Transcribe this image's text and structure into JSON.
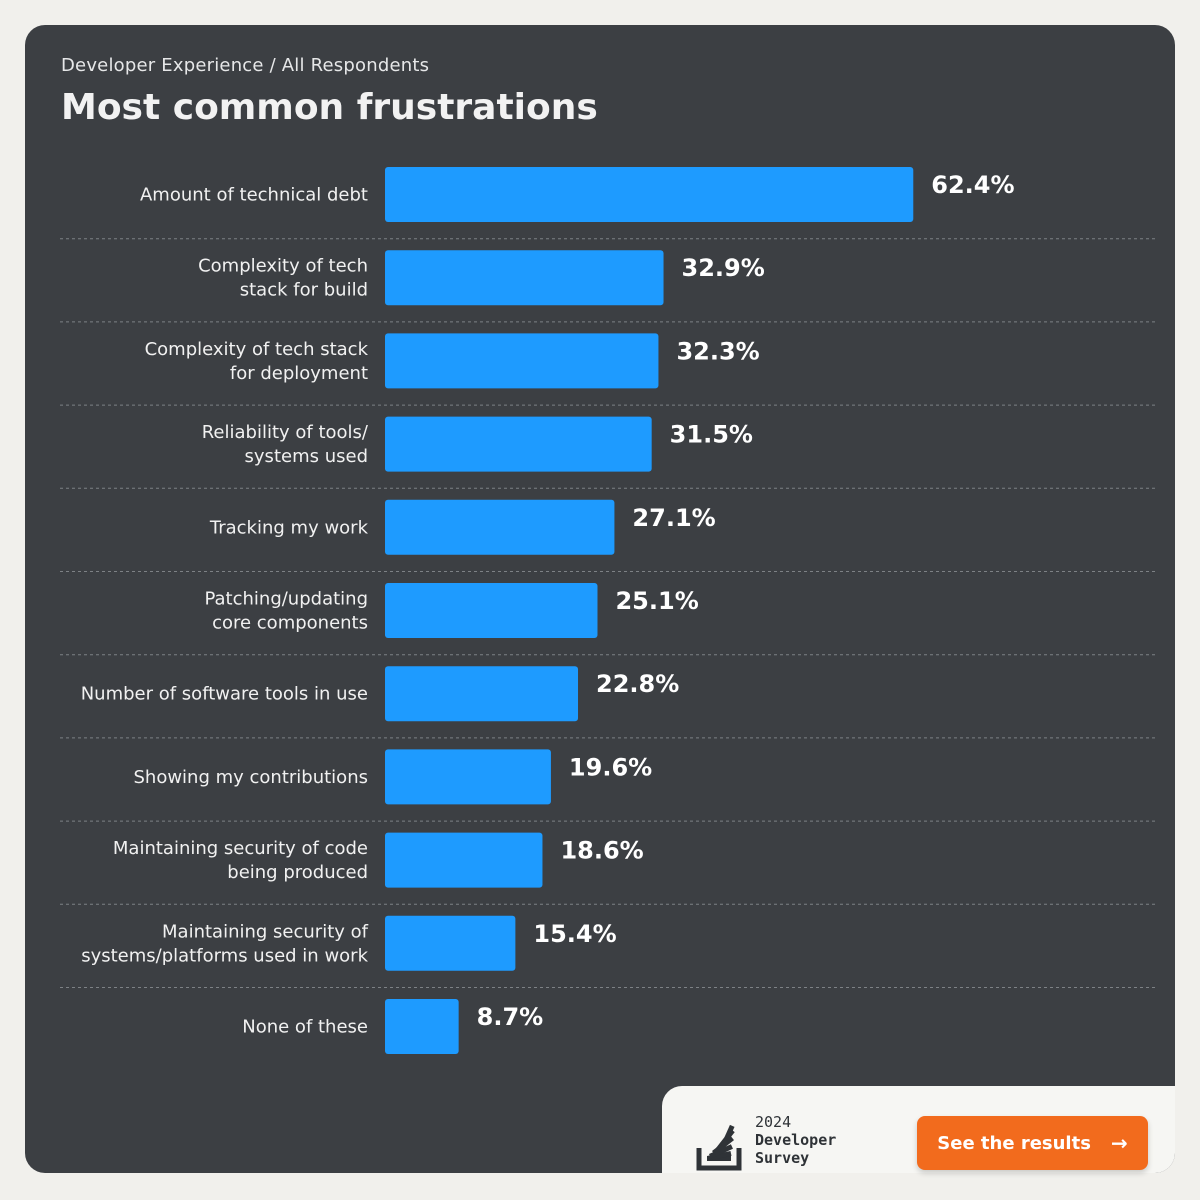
{
  "header": {
    "breadcrumb": "Developer Experience / All Respondents",
    "title": "Most common frustrations"
  },
  "footer": {
    "survey_year": "2024",
    "survey_line1": "Developer",
    "survey_line2": "Survey",
    "cta_label": "See the results",
    "logo_icon": "stack-overflow-logo-icon",
    "arrow_icon": "arrow-right-icon"
  },
  "colors": {
    "bar": "#1e9bff",
    "card_background": "#3c3f43",
    "page_background": "#f1f0ec",
    "cta": "#f26b1d"
  },
  "chart_data": {
    "type": "bar",
    "orientation": "horizontal",
    "categories": [
      [
        "Amount of technical debt"
      ],
      [
        "Complexity of tech",
        "stack for build"
      ],
      [
        "Complexity of tech stack",
        "for deployment"
      ],
      [
        "Reliability of tools/",
        "systems used"
      ],
      [
        "Tracking my work"
      ],
      [
        "Patching/updating",
        "core components"
      ],
      [
        "Number of software tools in use"
      ],
      [
        "Showing my contributions"
      ],
      [
        "Maintaining security of code",
        "being produced"
      ],
      [
        "Maintaining security of",
        "systems/platforms used in work"
      ],
      [
        "None of these"
      ]
    ],
    "values": [
      62.4,
      32.9,
      32.3,
      31.5,
      27.1,
      25.1,
      22.8,
      19.6,
      18.6,
      15.4,
      8.7
    ],
    "value_labels": [
      "62.4%",
      "32.9%",
      "32.3%",
      "31.5%",
      "27.1%",
      "25.1%",
      "22.8%",
      "19.6%",
      "18.6%",
      "15.4%",
      "8.7%"
    ],
    "unit": "%",
    "xlim": [
      0,
      100
    ],
    "grid": false,
    "legend": "none"
  }
}
